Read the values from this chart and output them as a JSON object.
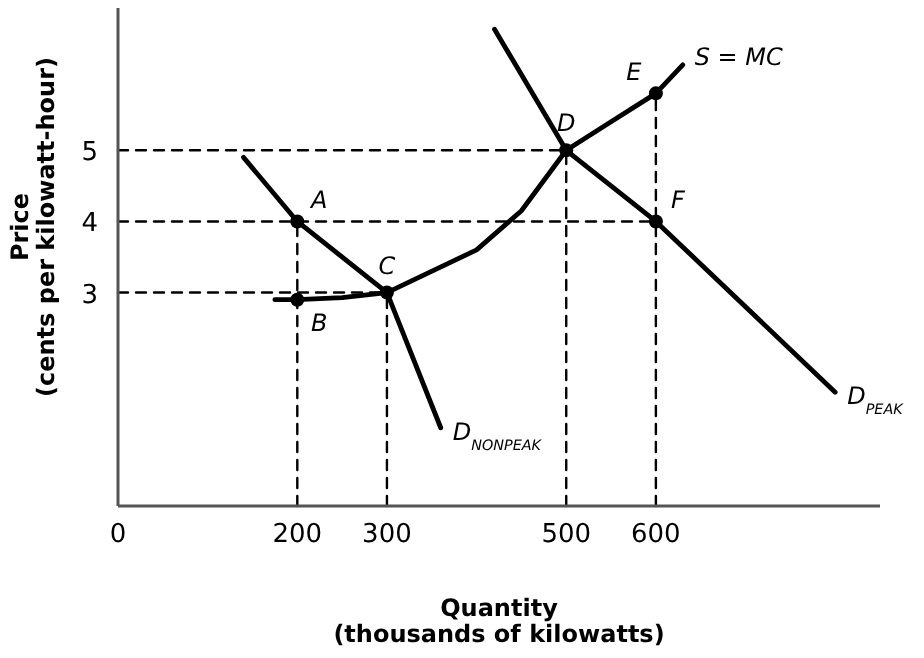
{
  "chart_data": {
    "type": "line",
    "xlabel": "Quantity\n(thousands of kilowatts)",
    "ylabel": "Price\n(cents per kilowatt-hour)",
    "xlim": [
      0,
      850
    ],
    "ylim": [
      0,
      7
    ],
    "xticks": [
      0,
      200,
      300,
      500,
      600
    ],
    "yticks": [
      3,
      4,
      5
    ],
    "grid": false,
    "series": [
      {
        "name": "S = MC",
        "color": "#000000",
        "x": [
          175,
          200,
          250,
          300,
          400,
          450,
          500,
          550,
          600,
          630
        ],
        "values": [
          2.9,
          2.9,
          2.93,
          3,
          3.6,
          4.15,
          5,
          5.4,
          5.8,
          6.2
        ]
      },
      {
        "name": "D$_{NONPEAK}$",
        "color": "#000000",
        "x": [
          140,
          200,
          300,
          360
        ],
        "values": [
          4.9,
          4,
          3,
          1.1
        ]
      },
      {
        "name": "D$_{PEAK}$",
        "color": "#000000",
        "x": [
          420,
          500,
          600,
          800
        ],
        "values": [
          6.7,
          5,
          4,
          1.6
        ]
      },
      {
        "color": "#000000",
        "line_style": "dashed",
        "x": [
          0,
          500
        ],
        "values": [
          5,
          5
        ]
      },
      {
        "color": "#000000",
        "line_style": "dashed",
        "x": [
          0,
          600
        ],
        "values": [
          4,
          4
        ]
      },
      {
        "color": "#000000",
        "line_style": "dashed",
        "x": [
          0,
          300
        ],
        "values": [
          3,
          3
        ]
      },
      {
        "color": "#000000",
        "line_style": "dashed",
        "x": [
          200,
          200
        ],
        "values": [
          0,
          4
        ]
      },
      {
        "color": "#000000",
        "line_style": "dashed",
        "x": [
          300,
          300
        ],
        "values": [
          0,
          3
        ]
      },
      {
        "color": "#000000",
        "line_style": "dashed",
        "x": [
          500,
          500
        ],
        "values": [
          0,
          5
        ]
      },
      {
        "color": "#000000",
        "line_style": "dashed",
        "x": [
          600,
          600
        ],
        "values": [
          0,
          5.8
        ]
      },
      {
        "type": "scatter",
        "marker": "circle",
        "color": "#000000",
        "x": [
          200,
          200,
          300,
          500,
          600,
          600
        ],
        "values": [
          4,
          2.9,
          3,
          5,
          5.8,
          4
        ]
      }
    ],
    "annotations": [
      {
        "text": "A",
        "x": 200,
        "y": 4
      },
      {
        "text": "B",
        "x": 200,
        "y": 2.9
      },
      {
        "text": "C",
        "x": 300,
        "y": 3
      },
      {
        "text": "D",
        "x": 500,
        "y": 5
      },
      {
        "text": "E",
        "x": 600,
        "y": 5.8
      },
      {
        "text": "F",
        "x": 600,
        "y": 4
      }
    ]
  }
}
